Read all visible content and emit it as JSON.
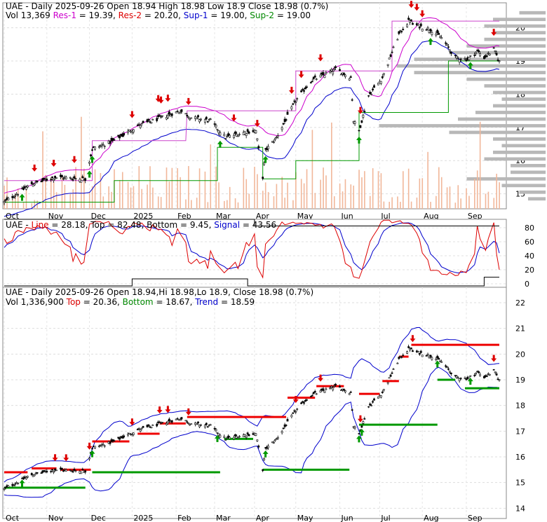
{
  "chart_data": [
    {
      "type": "candlestick",
      "panel": "price",
      "header": {
        "line1": [
          {
            "text": "UAE - Daily 2025-09-26 Open 18.94  High 18.98  Low 18.9  Close 18.98 (0.7%)",
            "color": "#000000"
          }
        ],
        "line2": [
          {
            "text": "Vol 13,369",
            "color": "#000000"
          },
          {
            "text": "Res-1",
            "color": "#cc00cc"
          },
          {
            "text": " = 19.39,",
            "color": "#000000"
          },
          {
            "text": "Res-2",
            "color": "#dd0000"
          },
          {
            "text": " = 20.20,",
            "color": "#000000"
          },
          {
            "text": "Sup-1",
            "color": "#0000cc"
          },
          {
            "text": " = 19.00,",
            "color": "#000000"
          },
          {
            "text": "Sup-2",
            "color": "#008800"
          },
          {
            "text": " = 19.00",
            "color": "#000000"
          }
        ]
      },
      "x_labels": [
        "Oct",
        "Nov",
        "Dec",
        "2025",
        "Feb",
        "Mar",
        "Apr",
        "May",
        "Jun",
        "Jul",
        "Aug",
        "Sep"
      ],
      "y_ticks": [
        15,
        16,
        17,
        18,
        19,
        20
      ],
      "ylim": [
        14.55,
        20.75
      ],
      "anchors": {
        "dates": [
          "2024-10-01",
          "2024-10-21",
          "2024-11-07",
          "2024-11-29",
          "2024-12-04",
          "2024-12-20",
          "2025-01-06",
          "2025-01-17",
          "2025-02-06",
          "2025-02-14",
          "2025-02-28",
          "2025-03-11",
          "2025-03-24",
          "2025-04-02",
          "2025-04-07",
          "2025-04-09",
          "2025-04-17",
          "2025-05-01",
          "2025-05-12",
          "2025-05-30",
          "2025-06-10",
          "2025-06-12",
          "2025-06-16",
          "2025-06-23",
          "2025-07-03",
          "2025-07-15",
          "2025-07-23",
          "2025-07-25",
          "2025-08-07",
          "2025-08-15",
          "2025-08-25",
          "2025-09-03",
          "2025-09-10",
          "2025-09-15",
          "2025-09-22",
          "2025-09-26"
        ],
        "close": [
          14.75,
          15.3,
          15.5,
          15.45,
          16.35,
          16.6,
          17.05,
          17.2,
          17.5,
          17.3,
          17.2,
          16.7,
          16.85,
          16.9,
          15.5,
          16.3,
          16.7,
          17.8,
          18.4,
          18.75,
          18.5,
          17.2,
          16.9,
          17.95,
          18.5,
          19.8,
          20.25,
          20.1,
          19.95,
          19.7,
          19.1,
          19.05,
          19.3,
          19.1,
          19.35,
          18.98
        ]
      },
      "moving_average_levels": [
        {
          "name": "Res-1",
          "color": "#cc00cc",
          "last_value": 19.39
        },
        {
          "name": "Res-2",
          "color": "#dd0000",
          "last_value": 20.2
        },
        {
          "name": "Sup-1",
          "color": "#0000cc",
          "last_value": 19.0
        },
        {
          "name": "Sup-2",
          "color": "#008800",
          "last_value": 19.0
        }
      ],
      "volume_profile": {
        "price_bins": [
          14.8,
          15.0,
          15.2,
          15.4,
          15.6,
          15.8,
          16.0,
          16.2,
          16.4,
          16.6,
          16.8,
          17.0,
          17.2,
          17.4,
          17.6,
          17.8,
          18.0,
          18.2,
          18.4,
          18.6,
          18.8,
          19.0,
          19.2,
          19.4,
          19.6,
          19.8,
          20.0,
          20.2,
          20.4
        ],
        "weights": [
          0.1,
          0.15,
          0.25,
          0.45,
          0.2,
          0.2,
          0.35,
          0.3,
          0.25,
          0.3,
          0.55,
          0.95,
          0.5,
          0.4,
          0.3,
          0.25,
          0.3,
          0.35,
          0.45,
          0.75,
          0.85,
          0.75,
          0.55,
          0.45,
          0.35,
          0.3,
          0.35,
          0.3,
          0.15
        ]
      }
    },
    {
      "type": "line",
      "panel": "stochastic",
      "header": [
        {
          "text": "UAE - ",
          "color": "#000000"
        },
        {
          "text": "Line",
          "color": "#dd0000"
        },
        {
          "text": " = 28.18, ",
          "color": "#000000"
        },
        {
          "text": "Top",
          "color": "#000000"
        },
        {
          "text": " = 82.48, ",
          "color": "#000000"
        },
        {
          "text": "Bottom",
          "color": "#000000"
        },
        {
          "text": " = 9.45, ",
          "color": "#000000"
        },
        {
          "text": "Signal",
          "color": "#0000cc"
        },
        {
          "text": " = 43.56",
          "color": "#000000"
        }
      ],
      "y_ticks": [
        0,
        20,
        40,
        60,
        80
      ],
      "ylim": [
        -5,
        92
      ],
      "series": [
        {
          "name": "Line",
          "color": "#dd0000"
        },
        {
          "name": "Signal",
          "color": "#0000cc"
        }
      ],
      "last": {
        "line": 28.18,
        "top": 82.48,
        "bottom": 9.45,
        "signal": 43.56
      }
    },
    {
      "type": "candlestick",
      "panel": "trend",
      "header": {
        "line1": [
          {
            "text": "UAE - Daily 2025-09-26 Open 18.94,Hi 18.98,Lo 18.9, Close 18.98 (0.7%)",
            "color": "#000000"
          }
        ],
        "line2": [
          {
            "text": "Vol 1,336,900 ",
            "color": "#000000"
          },
          {
            "text": "Top",
            "color": "#dd0000"
          },
          {
            "text": " = 20.36, ",
            "color": "#000000"
          },
          {
            "text": "Bottom",
            "color": "#008800"
          },
          {
            "text": " = 18.67, ",
            "color": "#000000"
          },
          {
            "text": "Trend",
            "color": "#0000cc"
          },
          {
            "text": " = 18.59",
            "color": "#000000"
          }
        ]
      },
      "x_labels": [
        "Oct",
        "Nov",
        "Dec",
        "2025",
        "Feb",
        "Mar",
        "Apr",
        "May",
        "Jun",
        "Jul",
        "Aug",
        "Sep"
      ],
      "y_ticks": [
        14,
        15,
        16,
        17,
        18,
        19,
        20,
        21,
        22
      ],
      "ylim": [
        13.6,
        22.6
      ],
      "resistance_segments": [
        {
          "start": "2024-10-01",
          "end": "2024-10-18",
          "value": 15.4
        },
        {
          "start": "2024-10-21",
          "end": "2024-11-08",
          "value": 15.55
        },
        {
          "start": "2024-11-11",
          "end": "2024-12-03",
          "value": 15.5
        },
        {
          "start": "2024-12-04",
          "end": "2024-12-31",
          "value": 16.6
        },
        {
          "start": "2025-01-06",
          "end": "2025-01-22",
          "value": 16.9
        },
        {
          "start": "2025-01-22",
          "end": "2025-02-10",
          "value": 17.3
        },
        {
          "start": "2025-02-11",
          "end": "2025-04-24",
          "value": 17.55
        },
        {
          "start": "2025-04-25",
          "end": "2025-05-15",
          "value": 18.3
        },
        {
          "start": "2025-05-16",
          "end": "2025-06-05",
          "value": 18.75
        },
        {
          "start": "2025-06-16",
          "end": "2025-07-01",
          "value": 18.45
        },
        {
          "start": "2025-07-03",
          "end": "2025-07-15",
          "value": 18.95
        },
        {
          "start": "2025-07-15",
          "end": "2025-07-22",
          "value": 19.9
        },
        {
          "start": "2025-07-24",
          "end": "2025-09-26",
          "value": 20.36
        }
      ],
      "support_segments": [
        {
          "start": "2024-10-01",
          "end": "2024-11-29",
          "value": 14.8
        },
        {
          "start": "2024-12-04",
          "end": "2025-03-07",
          "value": 15.4
        },
        {
          "start": "2025-03-10",
          "end": "2025-03-31",
          "value": 16.7
        },
        {
          "start": "2025-04-07",
          "end": "2025-06-09",
          "value": 15.5
        },
        {
          "start": "2025-06-16",
          "end": "2025-08-12",
          "value": 17.25
        },
        {
          "start": "2025-08-12",
          "end": "2025-08-25",
          "value": 19.0
        },
        {
          "start": "2025-09-01",
          "end": "2025-09-26",
          "value": 18.67
        }
      ]
    }
  ]
}
